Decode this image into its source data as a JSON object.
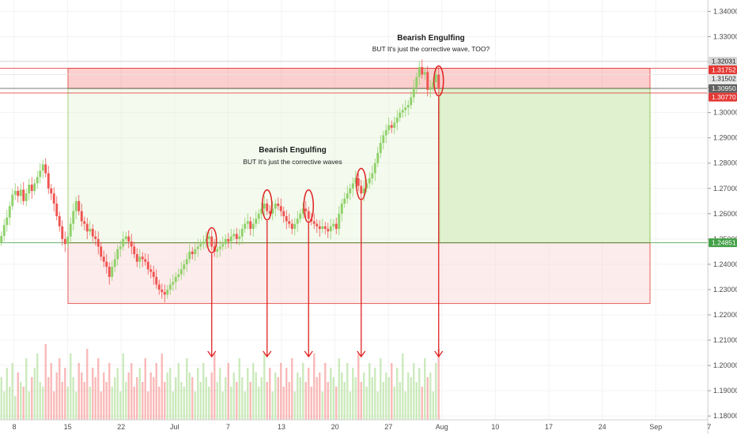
{
  "chart_data": {
    "type": "candlestick",
    "symbol_pair_scale": {
      "ylim": [
        1.1785,
        1.3445
      ],
      "y_ticks": [
        "1.34000",
        "1.33000",
        "1.32000",
        "1.31000",
        "1.30000",
        "1.29000",
        "1.28000",
        "1.27000",
        "1.26000",
        "1.25000",
        "1.24000",
        "1.23000",
        "1.22000",
        "1.21000",
        "1.20000",
        "1.19000",
        "1.18000"
      ],
      "x_ticks": [
        "8",
        "15",
        "22",
        "Jul",
        "7",
        "13",
        "20",
        "27",
        "Aug",
        "10",
        "17",
        "24",
        "Sep",
        "7"
      ]
    },
    "colors": {
      "up": "#8fd16a",
      "down": "#ef5350",
      "long_zone": "#dff2cf",
      "stop_zone": "#f8d8d4"
    },
    "price_labels": [
      {
        "value": "1.32031",
        "bg": "#d6d6d6",
        "fg": "#1e1e1e",
        "price": 1.32031
      },
      {
        "value": "1.31752",
        "bg": "#e53935",
        "fg": "#ffffff",
        "price": 1.31752
      },
      {
        "value": "1.31502",
        "bg": "#e6e6e6",
        "fg": "#1e1e1e",
        "price": 1.31502
      },
      {
        "value": "1.30950",
        "bg": "#616161",
        "fg": "#ffffff",
        "price": 1.3095
      },
      {
        "value": "1.30770",
        "bg": "#e53935",
        "fg": "#ffffff",
        "price": 1.3077
      },
      {
        "value": "1.24851",
        "bg": "#43a047",
        "fg": "#ffffff",
        "price": 1.24851
      }
    ],
    "annotations": [
      {
        "title": "Bearish Engulfing",
        "subtitle": "BUT It's just the corrective waves"
      },
      {
        "title": "Bearish Engulfing",
        "subtitle": "BUT It's just the corrective wave, TOO?"
      }
    ],
    "marked_candles": [
      {
        "bar": 76,
        "high": 1.2535,
        "low": 1.2455
      },
      {
        "bar": 96,
        "high": 1.2685,
        "low": 1.2585
      },
      {
        "bar": 111,
        "high": 1.2685,
        "low": 1.2575
      },
      {
        "bar": 130,
        "high": 1.277,
        "low": 1.2665
      },
      {
        "bar": 158,
        "high": 1.3175,
        "low": 1.3075
      }
    ],
    "positions": {
      "buy": {
        "entry": 1.2485,
        "target": 1.3175,
        "stop": 1.2245
      },
      "sell": {
        "entry": 1.3095,
        "target": 1.2485,
        "stop": 1.3175
      }
    },
    "total_bars": 159,
    "close": [
      1.2512,
      1.2555,
      1.2585,
      1.263,
      1.2675,
      1.269,
      1.267,
      1.2695,
      1.265,
      1.268,
      1.2715,
      1.269,
      1.272,
      1.2745,
      1.277,
      1.2795,
      1.276,
      1.27,
      1.268,
      1.264,
      1.259,
      1.255,
      1.25,
      1.248,
      1.251,
      1.256,
      1.261,
      1.265,
      1.261,
      1.257,
      1.256,
      1.253,
      1.254,
      1.251,
      1.25,
      1.247,
      1.243,
      1.241,
      1.239,
      1.235,
      1.239,
      1.242,
      1.246,
      1.247,
      1.25,
      1.251,
      1.249,
      1.247,
      1.244,
      1.241,
      1.243,
      1.242,
      1.241,
      1.238,
      1.237,
      1.235,
      1.232,
      1.23,
      1.229,
      1.228,
      1.23,
      1.232,
      1.233,
      1.235,
      1.236,
      1.238,
      1.24,
      1.242,
      1.245,
      1.244,
      1.246,
      1.247,
      1.248,
      1.249,
      1.25,
      1.251,
      1.247,
      1.245,
      1.246,
      1.247,
      1.248,
      1.25,
      1.249,
      1.251,
      1.252,
      1.25,
      1.251,
      1.254,
      1.256,
      1.257,
      1.254,
      1.256,
      1.258,
      1.26,
      1.262,
      1.264,
      1.261,
      1.26,
      1.262,
      1.264,
      1.263,
      1.261,
      1.259,
      1.257,
      1.256,
      1.254,
      1.256,
      1.258,
      1.26,
      1.262,
      1.261,
      1.258,
      1.257,
      1.256,
      1.255,
      1.254,
      1.255,
      1.254,
      1.253,
      1.255,
      1.256,
      1.254,
      1.26,
      1.264,
      1.266,
      1.268,
      1.27,
      1.272,
      1.274,
      1.271,
      1.268,
      1.27,
      1.272,
      1.274,
      1.276,
      1.28,
      1.284,
      1.288,
      1.291,
      1.293,
      1.295,
      1.294,
      1.296,
      1.298,
      1.3,
      1.301,
      1.302,
      1.303,
      1.306,
      1.31,
      1.314,
      1.318,
      1.315,
      1.316,
      1.309,
      1.31,
      1.312,
      1.315,
      1.3095
    ],
    "volume": [
      0.45,
      0.3,
      0.55,
      0.35,
      0.6,
      0.25,
      0.5,
      0.4,
      0.35,
      0.65,
      0.3,
      0.45,
      0.55,
      0.7,
      0.4,
      0.35,
      0.8,
      0.45,
      0.6,
      0.3,
      0.5,
      0.65,
      0.4,
      0.55,
      0.35,
      0.7,
      0.45,
      0.3,
      0.6,
      0.5,
      0.4,
      0.75,
      0.35,
      0.55,
      0.45,
      0.65,
      0.3,
      0.5,
      0.4,
      0.6,
      0.35,
      0.45,
      0.55,
      0.3,
      0.7,
      0.4,
      0.5,
      0.6,
      0.35,
      0.45,
      0.55,
      0.4,
      0.65,
      0.3,
      0.5,
      0.45,
      0.6,
      0.35,
      0.7,
      0.4,
      0.5,
      0.55,
      0.3,
      0.45,
      0.6,
      0.4,
      0.35,
      0.65,
      0.5,
      0.45,
      0.3,
      0.55,
      0.4,
      0.6,
      0.45,
      0.35,
      0.5,
      0.7,
      0.4,
      0.55,
      0.3,
      0.45,
      0.6,
      0.35,
      0.5,
      0.4,
      0.65,
      0.45,
      0.3,
      0.55,
      0.4,
      0.6,
      0.5,
      0.35,
      0.45,
      0.7,
      0.4,
      0.55,
      0.3,
      0.5,
      0.45,
      0.6,
      0.35,
      0.55,
      0.4,
      0.65,
      0.3,
      0.5,
      0.45,
      0.6,
      0.4,
      0.55,
      0.35,
      0.7,
      0.45,
      0.5,
      0.3,
      0.6,
      0.4,
      0.55,
      0.45,
      0.35,
      0.65,
      0.5,
      0.4,
      0.6,
      0.3,
      0.55,
      0.45,
      0.7,
      0.4,
      0.5,
      0.35,
      0.6,
      0.45,
      0.55,
      0.3,
      0.65,
      0.4,
      0.5,
      0.45,
      0.6,
      0.35,
      0.55,
      0.4,
      0.7,
      0.3,
      0.5,
      0.45,
      0.6,
      0.4,
      0.55,
      0.35,
      0.65,
      0.45,
      0.5,
      0.3,
      0.6,
      0.75
    ]
  }
}
